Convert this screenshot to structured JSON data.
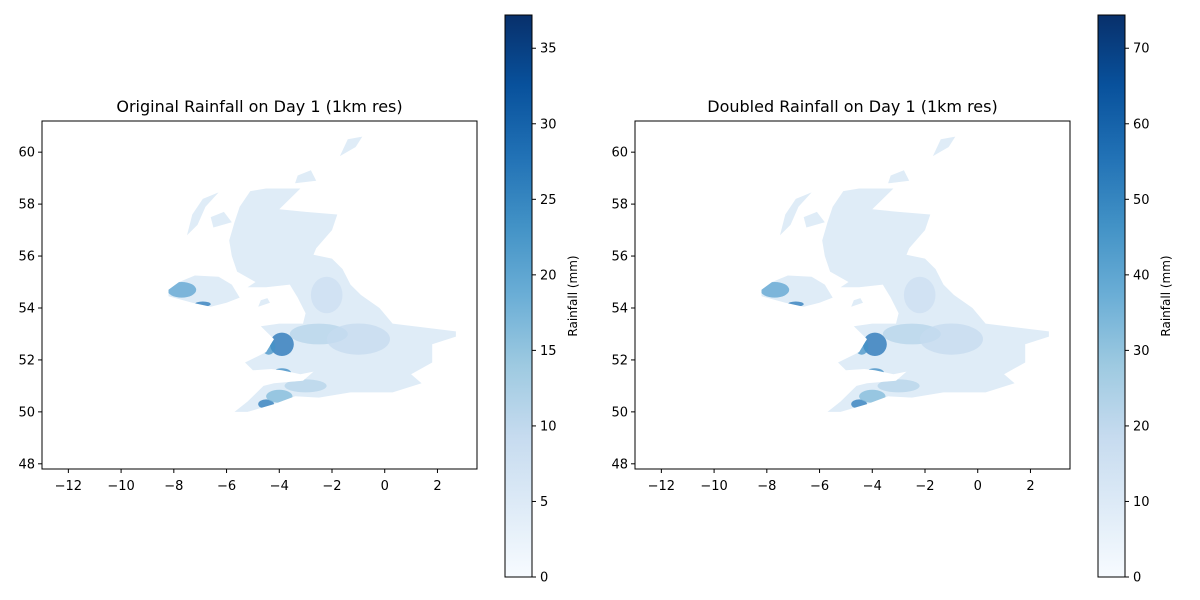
{
  "colormap": [
    "#f7fbff",
    "#deebf7",
    "#c6dbef",
    "#9ecae1",
    "#6baed6",
    "#4292c6",
    "#2171b5",
    "#08519c",
    "#08306b"
  ],
  "chart_data": [
    {
      "type": "heatmap",
      "title": "Original Rainfall on Day 1 (1km res)",
      "xlim": [
        -13,
        3.5
      ],
      "ylim": [
        47.8,
        61.2
      ],
      "xticks": [
        -12,
        -10,
        -8,
        -6,
        -4,
        -2,
        0,
        2
      ],
      "xtick_labels": [
        "−12",
        "−10",
        "−8",
        "−6",
        "−4",
        "−2",
        "0",
        "2"
      ],
      "yticks": [
        48,
        50,
        52,
        54,
        56,
        58,
        60
      ],
      "ytick_labels": [
        "48",
        "50",
        "52",
        "54",
        "56",
        "58",
        "60"
      ],
      "colorbar": {
        "label": "Rainfall (mm)",
        "range": [
          0,
          37.2
        ],
        "ticks": [
          0,
          5,
          10,
          15,
          20,
          25,
          30,
          35
        ],
        "tick_labels": [
          "0",
          "5",
          "10",
          "15",
          "20",
          "25",
          "30",
          "35"
        ]
      },
      "grid": false
    },
    {
      "type": "heatmap",
      "title": "Doubled Rainfall on Day 1 (1km res)",
      "xlim": [
        -13,
        3.5
      ],
      "ylim": [
        47.8,
        61.2
      ],
      "xticks": [
        -12,
        -10,
        -8,
        -6,
        -4,
        -2,
        0,
        2
      ],
      "xtick_labels": [
        "−12",
        "−10",
        "−8",
        "−6",
        "−4",
        "−2",
        "0",
        "2"
      ],
      "yticks": [
        48,
        50,
        52,
        54,
        56,
        58,
        60
      ],
      "ytick_labels": [
        "48",
        "50",
        "52",
        "54",
        "56",
        "58",
        "60"
      ],
      "colorbar": {
        "label": "Rainfall (mm)",
        "range": [
          0,
          74.4
        ],
        "ticks": [
          0,
          10,
          20,
          30,
          40,
          50,
          60,
          70
        ],
        "tick_labels": [
          "0",
          "10",
          "20",
          "30",
          "40",
          "50",
          "60",
          "70"
        ]
      },
      "grid": false
    }
  ],
  "map_shapes": {
    "great_britain": [
      [
        -5.7,
        50.0
      ],
      [
        -5.2,
        50.0
      ],
      [
        -4.2,
        50.3
      ],
      [
        -3.4,
        50.6
      ],
      [
        -2.5,
        50.55
      ],
      [
        -1.3,
        50.75
      ],
      [
        0.3,
        50.75
      ],
      [
        1.4,
        51.1
      ],
      [
        1.0,
        51.45
      ],
      [
        1.8,
        51.9
      ],
      [
        1.8,
        52.6
      ],
      [
        2.7,
        52.9
      ],
      [
        2.7,
        53.1
      ],
      [
        0.3,
        53.4
      ],
      [
        -0.2,
        54.0
      ],
      [
        -0.9,
        54.5
      ],
      [
        -1.3,
        54.9
      ],
      [
        -1.6,
        55.5
      ],
      [
        -2.0,
        55.9
      ],
      [
        -2.7,
        56.05
      ],
      [
        -2.6,
        56.3
      ],
      [
        -2.0,
        57.0
      ],
      [
        -1.8,
        57.6
      ],
      [
        -3.0,
        57.7
      ],
      [
        -4.0,
        57.8
      ],
      [
        -3.2,
        58.6
      ],
      [
        -4.5,
        58.6
      ],
      [
        -5.1,
        58.5
      ],
      [
        -5.5,
        57.9
      ],
      [
        -5.7,
        57.3
      ],
      [
        -5.9,
        56.6
      ],
      [
        -5.8,
        56.0
      ],
      [
        -5.6,
        55.4
      ],
      [
        -4.9,
        55.0
      ],
      [
        -5.2,
        54.8
      ],
      [
        -4.5,
        54.8
      ],
      [
        -3.6,
        54.9
      ],
      [
        -3.3,
        54.4
      ],
      [
        -3.0,
        53.8
      ],
      [
        -3.1,
        53.4
      ],
      [
        -4.0,
        53.4
      ],
      [
        -4.7,
        53.3
      ],
      [
        -4.2,
        52.8
      ],
      [
        -4.5,
        52.3
      ],
      [
        -5.3,
        51.9
      ],
      [
        -5.0,
        51.6
      ],
      [
        -4.3,
        51.65
      ],
      [
        -3.9,
        51.6
      ],
      [
        -3.2,
        51.45
      ],
      [
        -2.7,
        51.55
      ],
      [
        -3.1,
        51.2
      ],
      [
        -4.2,
        51.1
      ],
      [
        -4.6,
        51.0
      ],
      [
        -5.2,
        50.4
      ]
    ],
    "northern_ireland": [
      [
        -8.2,
        54.45
      ],
      [
        -7.3,
        54.2
      ],
      [
        -6.6,
        54.05
      ],
      [
        -6.0,
        54.2
      ],
      [
        -5.5,
        54.4
      ],
      [
        -5.8,
        54.9
      ],
      [
        -6.3,
        55.2
      ],
      [
        -7.2,
        55.25
      ],
      [
        -7.8,
        55.0
      ],
      [
        -8.2,
        54.7
      ]
    ],
    "isle_of_man": [
      [
        -4.8,
        54.05
      ],
      [
        -4.35,
        54.2
      ],
      [
        -4.45,
        54.38
      ],
      [
        -4.7,
        54.3
      ]
    ],
    "outer_hebrides": [
      [
        -7.5,
        56.8
      ],
      [
        -7.1,
        57.2
      ],
      [
        -6.8,
        57.9
      ],
      [
        -6.3,
        58.45
      ],
      [
        -6.9,
        58.2
      ],
      [
        -7.3,
        57.6
      ]
    ],
    "isle_of_skye": [
      [
        -6.5,
        57.1
      ],
      [
        -5.8,
        57.3
      ],
      [
        -6.1,
        57.7
      ],
      [
        -6.6,
        57.5
      ]
    ],
    "orkney": [
      [
        -3.4,
        58.8
      ],
      [
        -2.6,
        58.9
      ],
      [
        -2.8,
        59.3
      ],
      [
        -3.3,
        59.1
      ]
    ],
    "shetland": [
      [
        -1.7,
        59.85
      ],
      [
        -1.1,
        60.2
      ],
      [
        -0.85,
        60.6
      ],
      [
        -1.4,
        60.5
      ]
    ]
  },
  "rain_blobs": [
    {
      "lon": -3.9,
      "lat": 52.6,
      "rx": 0.45,
      "ry": 0.45,
      "level": 0.75
    },
    {
      "lon": -4.4,
      "lat": 52.5,
      "rx": 0.25,
      "ry": 0.3,
      "level": 0.62
    },
    {
      "lon": -3.9,
      "lat": 51.5,
      "rx": 0.35,
      "ry": 0.18,
      "level": 0.65
    },
    {
      "lon": -4.5,
      "lat": 50.3,
      "rx": 0.3,
      "ry": 0.18,
      "level": 0.72
    },
    {
      "lon": -4.0,
      "lat": 50.6,
      "rx": 0.5,
      "ry": 0.25,
      "level": 0.45
    },
    {
      "lon": -7.7,
      "lat": 54.7,
      "rx": 0.55,
      "ry": 0.3,
      "level": 0.55
    },
    {
      "lon": -8.6,
      "lat": 54.45,
      "rx": 0.35,
      "ry": 0.15,
      "level": 0.72
    },
    {
      "lon": -6.9,
      "lat": 54.15,
      "rx": 0.3,
      "ry": 0.1,
      "level": 0.72
    },
    {
      "lon": -5.0,
      "lat": 54.2,
      "rx": 0.15,
      "ry": 0.1,
      "level": 0.7
    },
    {
      "lon": -2.5,
      "lat": 53.0,
      "rx": 1.1,
      "ry": 0.4,
      "level": 0.3
    },
    {
      "lon": -1.0,
      "lat": 52.8,
      "rx": 1.2,
      "ry": 0.6,
      "level": 0.25
    },
    {
      "lon": -2.2,
      "lat": 54.5,
      "rx": 0.6,
      "ry": 0.7,
      "level": 0.22
    },
    {
      "lon": -3.0,
      "lat": 51.0,
      "rx": 0.8,
      "ry": 0.25,
      "level": 0.3
    }
  ]
}
